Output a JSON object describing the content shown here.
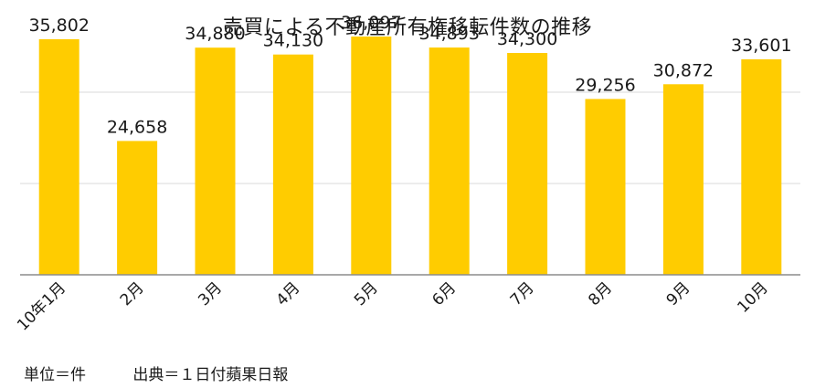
{
  "chart_data": {
    "type": "bar",
    "title": "売買による不動産所有権移転件数の推移",
    "categories": [
      "10年1月",
      "2月",
      "3月",
      "4月",
      "5月",
      "6月",
      "7月",
      "8月",
      "9月",
      "10月"
    ],
    "values": [
      35802,
      24658,
      34880,
      34130,
      36097,
      34893,
      34300,
      29256,
      30872,
      33601
    ],
    "data_labels": [
      "35,802",
      "24,658",
      "34,880",
      "34,130",
      "36,097",
      "34,893",
      "34,300",
      "29,256",
      "30,872",
      "33,601"
    ],
    "ylim": [
      10000,
      40000
    ],
    "gridlines": [
      20000,
      30000
    ],
    "bar_color": "#ffcc00",
    "grid": true,
    "legend": false
  },
  "footer": {
    "unit_note": "単位＝件",
    "source_note": "出典＝１日付蘋果日報"
  }
}
